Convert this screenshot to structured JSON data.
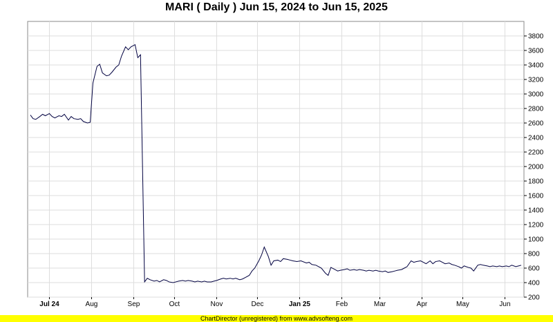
{
  "chart_data": {
    "type": "line",
    "title": "MARI ( Daily ) Jun 15, 2024 to Jun 15, 2025",
    "x_range": [
      "2024-06-15",
      "2025-06-15"
    ],
    "ylim": [
      200,
      4000
    ],
    "y_ticks": [
      200,
      400,
      600,
      800,
      1000,
      1200,
      1400,
      1600,
      1800,
      2000,
      2200,
      2400,
      2600,
      2800,
      3000,
      3200,
      3400,
      3600,
      3800
    ],
    "x_ticks": [
      {
        "label": "Jul 24",
        "date": "2024-07-01",
        "bold": true
      },
      {
        "label": "Aug",
        "date": "2024-08-01",
        "bold": false
      },
      {
        "label": "Sep",
        "date": "2024-09-01",
        "bold": false
      },
      {
        "label": "Oct",
        "date": "2024-10-01",
        "bold": false
      },
      {
        "label": "Nov",
        "date": "2024-11-01",
        "bold": false
      },
      {
        "label": "Dec",
        "date": "2024-12-01",
        "bold": false
      },
      {
        "label": "Jan 25",
        "date": "2025-01-01",
        "bold": true
      },
      {
        "label": "Feb",
        "date": "2025-02-01",
        "bold": false
      },
      {
        "label": "Mar",
        "date": "2025-03-01",
        "bold": false
      },
      {
        "label": "Apr",
        "date": "2025-04-01",
        "bold": false
      },
      {
        "label": "May",
        "date": "2025-05-01",
        "bold": false
      },
      {
        "label": "Jun",
        "date": "2025-06-01",
        "bold": false
      }
    ],
    "grid": true,
    "line_color": "#000040",
    "series": [
      {
        "points": [
          [
            "2024-06-17",
            2710
          ],
          [
            "2024-06-19",
            2660
          ],
          [
            "2024-06-21",
            2650
          ],
          [
            "2024-06-24",
            2690
          ],
          [
            "2024-06-26",
            2720
          ],
          [
            "2024-06-28",
            2700
          ],
          [
            "2024-07-01",
            2730
          ],
          [
            "2024-07-03",
            2690
          ],
          [
            "2024-07-05",
            2670
          ],
          [
            "2024-07-08",
            2700
          ],
          [
            "2024-07-10",
            2690
          ],
          [
            "2024-07-12",
            2720
          ],
          [
            "2024-07-15",
            2640
          ],
          [
            "2024-07-17",
            2690
          ],
          [
            "2024-07-19",
            2660
          ],
          [
            "2024-07-22",
            2650
          ],
          [
            "2024-07-24",
            2660
          ],
          [
            "2024-07-26",
            2620
          ],
          [
            "2024-07-29",
            2600
          ],
          [
            "2024-07-31",
            2610
          ],
          [
            "2024-08-02",
            3150
          ],
          [
            "2024-08-05",
            3380
          ],
          [
            "2024-08-07",
            3410
          ],
          [
            "2024-08-09",
            3290
          ],
          [
            "2024-08-12",
            3250
          ],
          [
            "2024-08-14",
            3260
          ],
          [
            "2024-08-16",
            3300
          ],
          [
            "2024-08-19",
            3370
          ],
          [
            "2024-08-21",
            3400
          ],
          [
            "2024-08-23",
            3520
          ],
          [
            "2024-08-26",
            3650
          ],
          [
            "2024-08-28",
            3610
          ],
          [
            "2024-08-30",
            3650
          ],
          [
            "2024-09-02",
            3680
          ],
          [
            "2024-09-04",
            3500
          ],
          [
            "2024-09-06",
            3540
          ],
          [
            "2024-09-09",
            410
          ],
          [
            "2024-09-11",
            460
          ],
          [
            "2024-09-13",
            440
          ],
          [
            "2024-09-16",
            420
          ],
          [
            "2024-09-18",
            430
          ],
          [
            "2024-09-20",
            410
          ],
          [
            "2024-09-23",
            440
          ],
          [
            "2024-09-25",
            430
          ],
          [
            "2024-09-27",
            410
          ],
          [
            "2024-09-30",
            400
          ],
          [
            "2024-10-02",
            410
          ],
          [
            "2024-10-04",
            420
          ],
          [
            "2024-10-07",
            430
          ],
          [
            "2024-10-09",
            420
          ],
          [
            "2024-10-11",
            430
          ],
          [
            "2024-10-14",
            420
          ],
          [
            "2024-10-16",
            410
          ],
          [
            "2024-10-18",
            420
          ],
          [
            "2024-10-21",
            410
          ],
          [
            "2024-10-23",
            420
          ],
          [
            "2024-10-25",
            410
          ],
          [
            "2024-10-28",
            410
          ],
          [
            "2024-10-30",
            420
          ],
          [
            "2024-11-01",
            430
          ],
          [
            "2024-11-04",
            450
          ],
          [
            "2024-11-06",
            460
          ],
          [
            "2024-11-08",
            450
          ],
          [
            "2024-11-11",
            460
          ],
          [
            "2024-11-13",
            450
          ],
          [
            "2024-11-15",
            460
          ],
          [
            "2024-11-18",
            440
          ],
          [
            "2024-11-20",
            450
          ],
          [
            "2024-11-22",
            470
          ],
          [
            "2024-11-25",
            500
          ],
          [
            "2024-11-27",
            560
          ],
          [
            "2024-11-29",
            600
          ],
          [
            "2024-12-02",
            700
          ],
          [
            "2024-12-04",
            780
          ],
          [
            "2024-12-06",
            890
          ],
          [
            "2024-12-09",
            760
          ],
          [
            "2024-12-11",
            640
          ],
          [
            "2024-12-13",
            700
          ],
          [
            "2024-12-16",
            710
          ],
          [
            "2024-12-18",
            690
          ],
          [
            "2024-12-20",
            730
          ],
          [
            "2024-12-23",
            720
          ],
          [
            "2024-12-25",
            710
          ],
          [
            "2024-12-27",
            700
          ],
          [
            "2024-12-30",
            690
          ],
          [
            "2025-01-02",
            700
          ],
          [
            "2025-01-06",
            670
          ],
          [
            "2025-01-08",
            680
          ],
          [
            "2025-01-10",
            650
          ],
          [
            "2025-01-13",
            640
          ],
          [
            "2025-01-15",
            620
          ],
          [
            "2025-01-17",
            600
          ],
          [
            "2025-01-20",
            530
          ],
          [
            "2025-01-22",
            500
          ],
          [
            "2025-01-24",
            610
          ],
          [
            "2025-01-27",
            580
          ],
          [
            "2025-01-29",
            560
          ],
          [
            "2025-01-31",
            570
          ],
          [
            "2025-02-03",
            580
          ],
          [
            "2025-02-05",
            590
          ],
          [
            "2025-02-07",
            570
          ],
          [
            "2025-02-10",
            580
          ],
          [
            "2025-02-12",
            570
          ],
          [
            "2025-02-14",
            580
          ],
          [
            "2025-02-17",
            570
          ],
          [
            "2025-02-19",
            560
          ],
          [
            "2025-02-21",
            570
          ],
          [
            "2025-02-24",
            560
          ],
          [
            "2025-02-26",
            570
          ],
          [
            "2025-02-28",
            560
          ],
          [
            "2025-03-03",
            550
          ],
          [
            "2025-03-05",
            560
          ],
          [
            "2025-03-07",
            540
          ],
          [
            "2025-03-10",
            550
          ],
          [
            "2025-03-12",
            560
          ],
          [
            "2025-03-14",
            570
          ],
          [
            "2025-03-17",
            580
          ],
          [
            "2025-03-19",
            600
          ],
          [
            "2025-03-21",
            620
          ],
          [
            "2025-03-24",
            700
          ],
          [
            "2025-03-26",
            680
          ],
          [
            "2025-03-28",
            690
          ],
          [
            "2025-03-31",
            700
          ],
          [
            "2025-04-02",
            680
          ],
          [
            "2025-04-04",
            660
          ],
          [
            "2025-04-07",
            700
          ],
          [
            "2025-04-09",
            660
          ],
          [
            "2025-04-11",
            690
          ],
          [
            "2025-04-14",
            700
          ],
          [
            "2025-04-16",
            680
          ],
          [
            "2025-04-18",
            660
          ],
          [
            "2025-04-21",
            670
          ],
          [
            "2025-04-23",
            650
          ],
          [
            "2025-04-25",
            640
          ],
          [
            "2025-04-28",
            620
          ],
          [
            "2025-04-30",
            600
          ],
          [
            "2025-05-02",
            630
          ],
          [
            "2025-05-05",
            610
          ],
          [
            "2025-05-07",
            600
          ],
          [
            "2025-05-09",
            560
          ],
          [
            "2025-05-12",
            640
          ],
          [
            "2025-05-14",
            650
          ],
          [
            "2025-05-16",
            640
          ],
          [
            "2025-05-19",
            630
          ],
          [
            "2025-05-21",
            620
          ],
          [
            "2025-05-23",
            630
          ],
          [
            "2025-05-26",
            620
          ],
          [
            "2025-05-28",
            630
          ],
          [
            "2025-05-30",
            620
          ],
          [
            "2025-06-02",
            630
          ],
          [
            "2025-06-04",
            620
          ],
          [
            "2025-06-06",
            640
          ],
          [
            "2025-06-09",
            620
          ],
          [
            "2025-06-11",
            630
          ],
          [
            "2025-06-13",
            640
          ]
        ]
      }
    ]
  },
  "footer": "ChartDirector (unregistered) from www.advsofteng.com"
}
